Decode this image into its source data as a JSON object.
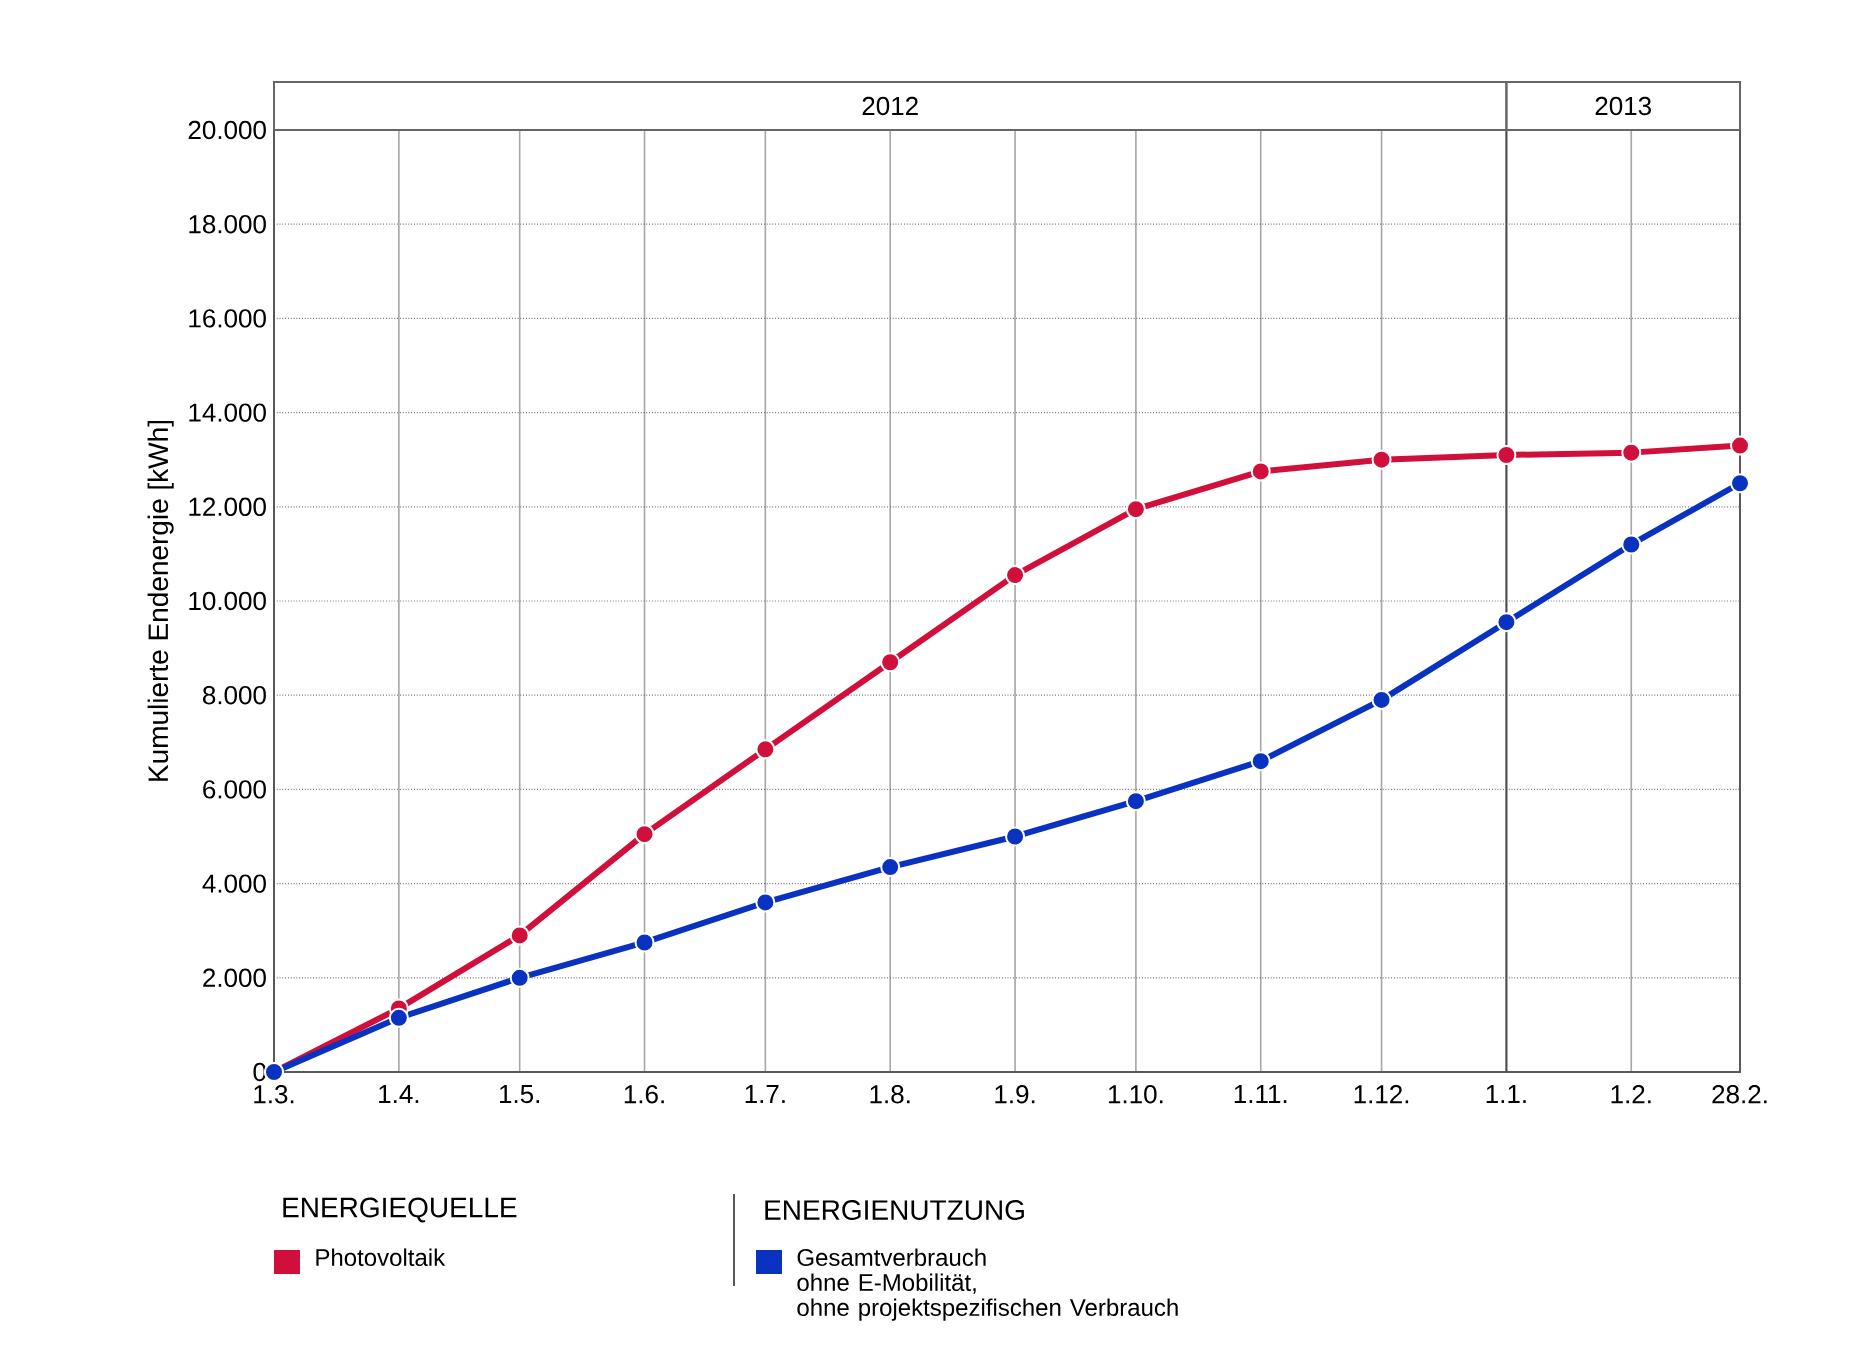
{
  "chart_data": {
    "type": "line",
    "ylabel": "Kumulierte Endenergie [kWh]",
    "x": [
      "2012-03-01",
      "2012-04-01",
      "2012-05-01",
      "2012-06-01",
      "2012-07-01",
      "2012-08-01",
      "2012-09-01",
      "2012-10-01",
      "2012-11-01",
      "2012-12-01",
      "2013-01-01",
      "2013-02-01",
      "2013-02-28"
    ],
    "series": [
      {
        "name": "Photovoltaik",
        "color": "#d0103a",
        "values": [
          0,
          1350,
          2900,
          5050,
          6850,
          8700,
          10550,
          11950,
          12750,
          13000,
          13100,
          13150,
          13300
        ]
      },
      {
        "name": "Gesamtverbrauch\nohne E-Mobilität,\nohne projektspezifischen Verbrauch",
        "color": "#0a32c0",
        "values": [
          0,
          1150,
          2000,
          2750,
          3600,
          4350,
          5000,
          5750,
          6600,
          7900,
          9550,
          11200,
          12500
        ]
      }
    ],
    "xlim": [
      "2012-03-01",
      "2013-02-28"
    ],
    "xticks": [
      {
        "value": "2012-03-01",
        "label": "1.3."
      },
      {
        "value": "2012-04-01",
        "label": "1.4."
      },
      {
        "value": "2012-05-01",
        "label": "1.5."
      },
      {
        "value": "2012-06-01",
        "label": "1.6."
      },
      {
        "value": "2012-07-01",
        "label": "1.7."
      },
      {
        "value": "2012-08-01",
        "label": "1.8."
      },
      {
        "value": "2012-09-01",
        "label": "1.9."
      },
      {
        "value": "2012-10-01",
        "label": "1.10."
      },
      {
        "value": "2012-11-01",
        "label": "1.11."
      },
      {
        "value": "2012-12-01",
        "label": "1.12."
      },
      {
        "value": "2013-01-01",
        "label": "1.1."
      },
      {
        "value": "2013-02-01",
        "label": "1.2."
      },
      {
        "value": "2013-02-28",
        "label": "28.2."
      }
    ],
    "ylim": [
      0,
      20000
    ],
    "yticks": [
      0,
      {
        "value": 2000,
        "label": "2.000"
      },
      {
        "value": 4000,
        "label": "4.000"
      },
      {
        "value": 6000,
        "label": "6.000"
      },
      {
        "value": 8000,
        "label": "8.000"
      },
      {
        "value": 10000,
        "label": "10.000"
      },
      {
        "value": 12000,
        "label": "12.000"
      },
      {
        "value": 14000,
        "label": "14.000"
      },
      {
        "value": 16000,
        "label": "16.000"
      },
      {
        "value": 18000,
        "label": "18.000"
      },
      {
        "value": 20000,
        "label": "20.000"
      }
    ],
    "ref_lines": [
      {
        "axis": "x",
        "value": "2013-01-01",
        "color": "#4c4c4c"
      }
    ],
    "annotations": [
      "2012",
      "2013",
      "ENERGIEQUELLE",
      "ENERGIENUTZUNG"
    ],
    "grid": true,
    "legend": "bottom",
    "marker": "circle",
    "line_style": "solid"
  }
}
